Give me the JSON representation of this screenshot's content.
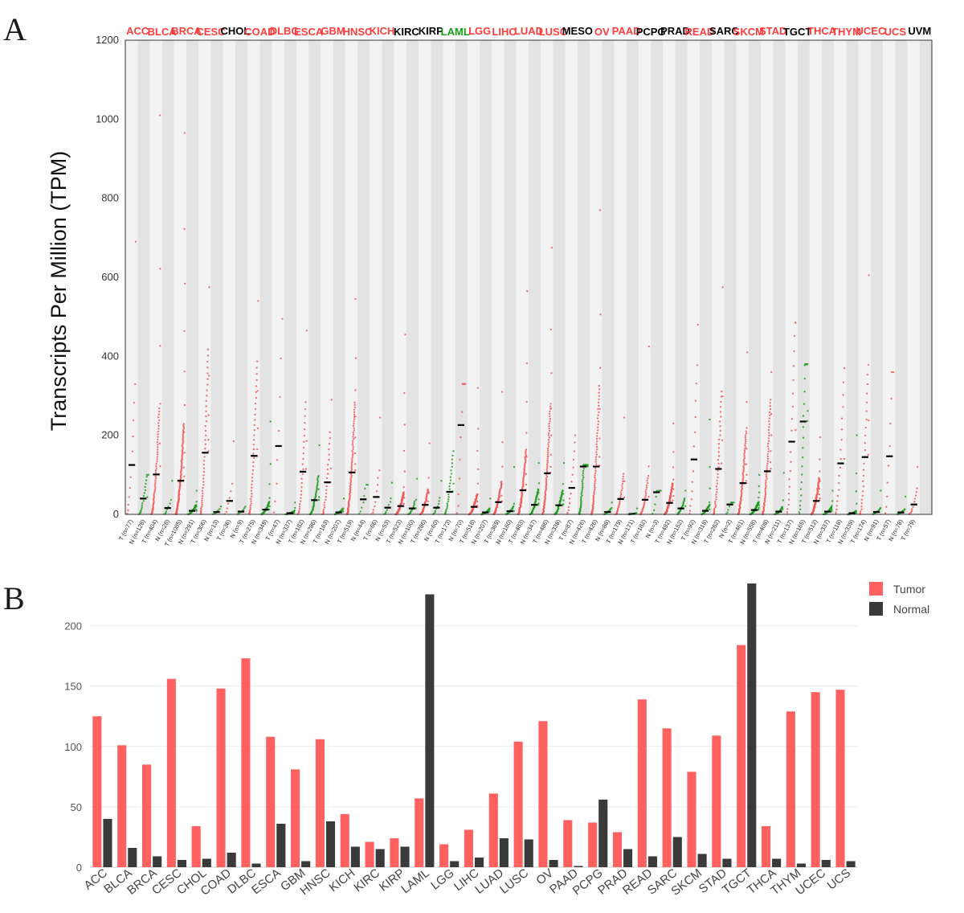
{
  "panels": {
    "a": "A",
    "b": "B"
  },
  "colors": {
    "up": "#ff3b3b",
    "down": "#16a016",
    "none": "#000000",
    "tumor": "#ff6161",
    "normal": "#3a3a3a",
    "tumor_dot": "#f25555",
    "normal_dot": "#1c9c1c"
  },
  "chart_data": [
    {
      "type": "scatter",
      "title": "",
      "ylabel": "Transcripts Per Million (TPM)",
      "ylim": [
        0,
        1200
      ],
      "yticks": [
        0,
        200,
        400,
        600,
        800,
        1000,
        1200
      ],
      "cancers": [
        {
          "name": "ACC",
          "status": "up",
          "tumor_n": "T (n=77)",
          "normal_n": "N (n=128)",
          "tumor_median": 125,
          "normal_median": 40,
          "tumor_max": 690,
          "normal_max": 100
        },
        {
          "name": "BLCA",
          "status": "up",
          "tumor_n": "T (n=404)",
          "normal_n": "N (n=28)",
          "tumor_median": 101,
          "normal_median": 16,
          "tumor_max": 1010,
          "normal_max": 85
        },
        {
          "name": "BRCA",
          "status": "up",
          "tumor_n": "T (n=1085)",
          "normal_n": "N (n=291)",
          "tumor_median": 85,
          "normal_median": 9,
          "tumor_max": 965,
          "normal_max": 60
        },
        {
          "name": "CESC",
          "status": "up",
          "tumor_n": "T (n=306)",
          "normal_n": "N (n=13)",
          "tumor_median": 156,
          "normal_median": 6,
          "tumor_max": 575,
          "normal_max": 20
        },
        {
          "name": "CHOL",
          "status": "none",
          "tumor_n": "T (n=36)",
          "normal_n": "N (n=9)",
          "tumor_median": 34,
          "normal_median": 7,
          "tumor_max": 185,
          "normal_max": 20
        },
        {
          "name": "COAD",
          "status": "up",
          "tumor_n": "T (n=275)",
          "normal_n": "N (n=349)",
          "tumor_median": 148,
          "normal_median": 12,
          "tumor_max": 540,
          "normal_max": 235
        },
        {
          "name": "DLBC",
          "status": "up",
          "tumor_n": "T (n=47)",
          "normal_n": "N (n=337)",
          "tumor_median": 173,
          "normal_median": 3,
          "tumor_max": 495,
          "normal_max": 30
        },
        {
          "name": "ESCA",
          "status": "up",
          "tumor_n": "T (n=182)",
          "normal_n": "N (n=286)",
          "tumor_median": 108,
          "normal_median": 36,
          "tumor_max": 465,
          "normal_max": 175
        },
        {
          "name": "GBM",
          "status": "up",
          "tumor_n": "T (n=163)",
          "normal_n": "N (n=207)",
          "tumor_median": 81,
          "normal_median": 5,
          "tumor_max": 290,
          "normal_max": 40
        },
        {
          "name": "HNSC",
          "status": "up",
          "tumor_n": "T (n=519)",
          "normal_n": "N (n=44)",
          "tumor_median": 106,
          "normal_median": 38,
          "tumor_max": 545,
          "normal_max": 75
        },
        {
          "name": "KICH",
          "status": "up",
          "tumor_n": "T (n=66)",
          "normal_n": "N (n=53)",
          "tumor_median": 44,
          "normal_median": 17,
          "tumor_max": 245,
          "normal_max": 80
        },
        {
          "name": "KIRC",
          "status": "none",
          "tumor_n": "T (n=523)",
          "normal_n": "N (n=100)",
          "tumor_median": 21,
          "normal_median": 15,
          "tumor_max": 455,
          "normal_max": 90
        },
        {
          "name": "KIRP",
          "status": "none",
          "tumor_n": "T (n=286)",
          "normal_n": "N (n=60)",
          "tumor_median": 24,
          "normal_median": 17,
          "tumor_max": 180,
          "normal_max": 85
        },
        {
          "name": "LAML",
          "status": "down",
          "tumor_n": "T (n=173)",
          "normal_n": "N (n=70)",
          "tumor_median": 57,
          "normal_median": 226,
          "tumor_max": 160,
          "normal_max": 330
        },
        {
          "name": "LGG",
          "status": "up",
          "tumor_n": "T (n=518)",
          "normal_n": "N (n=207)",
          "tumor_median": 19,
          "normal_median": 5,
          "tumor_max": 320,
          "normal_max": 40
        },
        {
          "name": "LIHC",
          "status": "up",
          "tumor_n": "T (n=369)",
          "normal_n": "N (n=160)",
          "tumor_median": 31,
          "normal_median": 8,
          "tumor_max": 310,
          "normal_max": 120
        },
        {
          "name": "LUAD",
          "status": "up",
          "tumor_n": "T (n=483)",
          "normal_n": "N (n=347)",
          "tumor_median": 61,
          "normal_median": 24,
          "tumor_max": 565,
          "normal_max": 130
        },
        {
          "name": "LUSC",
          "status": "up",
          "tumor_n": "T (n=486)",
          "normal_n": "N (n=338)",
          "tumor_median": 104,
          "normal_median": 23,
          "tumor_max": 675,
          "normal_max": 130
        },
        {
          "name": "MESO",
          "status": "none",
          "tumor_n": "T (n=87)",
          "normal_n": "N (n=426)",
          "tumor_median": 67,
          "normal_median": 121,
          "tumor_max": 200,
          "normal_max": 125
        },
        {
          "name": "OV",
          "status": "up",
          "tumor_n": "T (n=426)",
          "normal_n": "N (n=88)",
          "tumor_median": 121,
          "normal_median": 6,
          "tumor_max": 770,
          "normal_max": 30
        },
        {
          "name": "PAAD",
          "status": "up",
          "tumor_n": "T (n=179)",
          "normal_n": "N (n=171)",
          "tumor_median": 39,
          "normal_median": 1,
          "tumor_max": 245,
          "normal_max": 15
        },
        {
          "name": "PCPG",
          "status": "none",
          "tumor_n": "T (n=182)",
          "normal_n": "N (n=3)",
          "tumor_median": 37,
          "normal_median": 56,
          "tumor_max": 425,
          "normal_max": 60
        },
        {
          "name": "PRAD",
          "status": "none",
          "tumor_n": "T (n=492)",
          "normal_n": "N (n=152)",
          "tumor_median": 29,
          "normal_median": 15,
          "tumor_max": 230,
          "normal_max": 60
        },
        {
          "name": "READ",
          "status": "up",
          "tumor_n": "T (n=92)",
          "normal_n": "N (n=318)",
          "tumor_median": 139,
          "normal_median": 9,
          "tumor_max": 480,
          "normal_max": 240
        },
        {
          "name": "SARC",
          "status": "none",
          "tumor_n": "T (n=262)",
          "normal_n": "N (n=2)",
          "tumor_median": 115,
          "normal_median": 25,
          "tumor_max": 575,
          "normal_max": 30
        },
        {
          "name": "SKCM",
          "status": "up",
          "tumor_n": "T (n=461)",
          "normal_n": "N (n=558)",
          "tumor_median": 79,
          "normal_median": 11,
          "tumor_max": 410,
          "normal_max": 100
        },
        {
          "name": "STAD",
          "status": "up",
          "tumor_n": "T (n=408)",
          "normal_n": "N (n=211)",
          "tumor_median": 109,
          "normal_median": 7,
          "tumor_max": 360,
          "normal_max": 105
        },
        {
          "name": "TGCT",
          "status": "none",
          "tumor_n": "T (n=137)",
          "normal_n": "N (n=165)",
          "tumor_median": 184,
          "normal_median": 235,
          "tumor_max": 485,
          "normal_max": 380
        },
        {
          "name": "THCA",
          "status": "up",
          "tumor_n": "T (n=512)",
          "normal_n": "N (n=337)",
          "tumor_median": 34,
          "normal_median": 7,
          "tumor_max": 195,
          "normal_max": 60
        },
        {
          "name": "THYM",
          "status": "up",
          "tumor_n": "T (n=118)",
          "normal_n": "N (n=339)",
          "tumor_median": 129,
          "normal_median": 3,
          "tumor_max": 370,
          "normal_max": 200
        },
        {
          "name": "UCEC",
          "status": "up",
          "tumor_n": "T (n=174)",
          "normal_n": "N (n=91)",
          "tumor_median": 145,
          "normal_median": 6,
          "tumor_max": 605,
          "normal_max": 60
        },
        {
          "name": "UCS",
          "status": "up",
          "tumor_n": "T (n=57)",
          "normal_n": "N (n=78)",
          "tumor_median": 147,
          "normal_median": 5,
          "tumor_max": 360,
          "normal_max": 45
        },
        {
          "name": "UVM",
          "status": "none",
          "tumor_n": "T (n=79)",
          "normal_n": "",
          "tumor_median": 25,
          "normal_median": null,
          "tumor_max": 120,
          "normal_max": null
        }
      ]
    },
    {
      "type": "bar",
      "title": "",
      "xlabel": "",
      "ylabel": "",
      "ylim": [
        0,
        235
      ],
      "yticks": [
        0,
        50,
        100,
        150,
        200
      ],
      "legend": "top-right",
      "categories": [
        "ACC",
        "BLCA",
        "BRCA",
        "CESC",
        "CHOL",
        "COAD",
        "DLBC",
        "ESCA",
        "GBM",
        "HNSC",
        "KICH",
        "KIRC",
        "KIRP",
        "LAML",
        "LGG",
        "LIHC",
        "LUAD",
        "LUSC",
        "OV",
        "PAAD",
        "PCPG",
        "PRAD",
        "READ",
        "SARC",
        "SKCM",
        "STAD",
        "TGCT",
        "THCA",
        "THYM",
        "UCEC",
        "UCS"
      ],
      "series": [
        {
          "name": "Tumor",
          "values": [
            125,
            101,
            85,
            156,
            34,
            148,
            173,
            108,
            81,
            106,
            44,
            21,
            24,
            57,
            19,
            31,
            61,
            104,
            121,
            39,
            37,
            29,
            139,
            115,
            79,
            109,
            184,
            34,
            129,
            145,
            147
          ]
        },
        {
          "name": "Normal",
          "values": [
            40,
            16,
            9,
            6,
            7,
            12,
            3,
            36,
            5,
            38,
            17,
            15,
            17,
            226,
            5,
            8,
            24,
            23,
            6,
            1,
            56,
            15,
            9,
            25,
            11,
            7,
            235,
            7,
            3,
            6,
            5
          ]
        }
      ]
    }
  ]
}
